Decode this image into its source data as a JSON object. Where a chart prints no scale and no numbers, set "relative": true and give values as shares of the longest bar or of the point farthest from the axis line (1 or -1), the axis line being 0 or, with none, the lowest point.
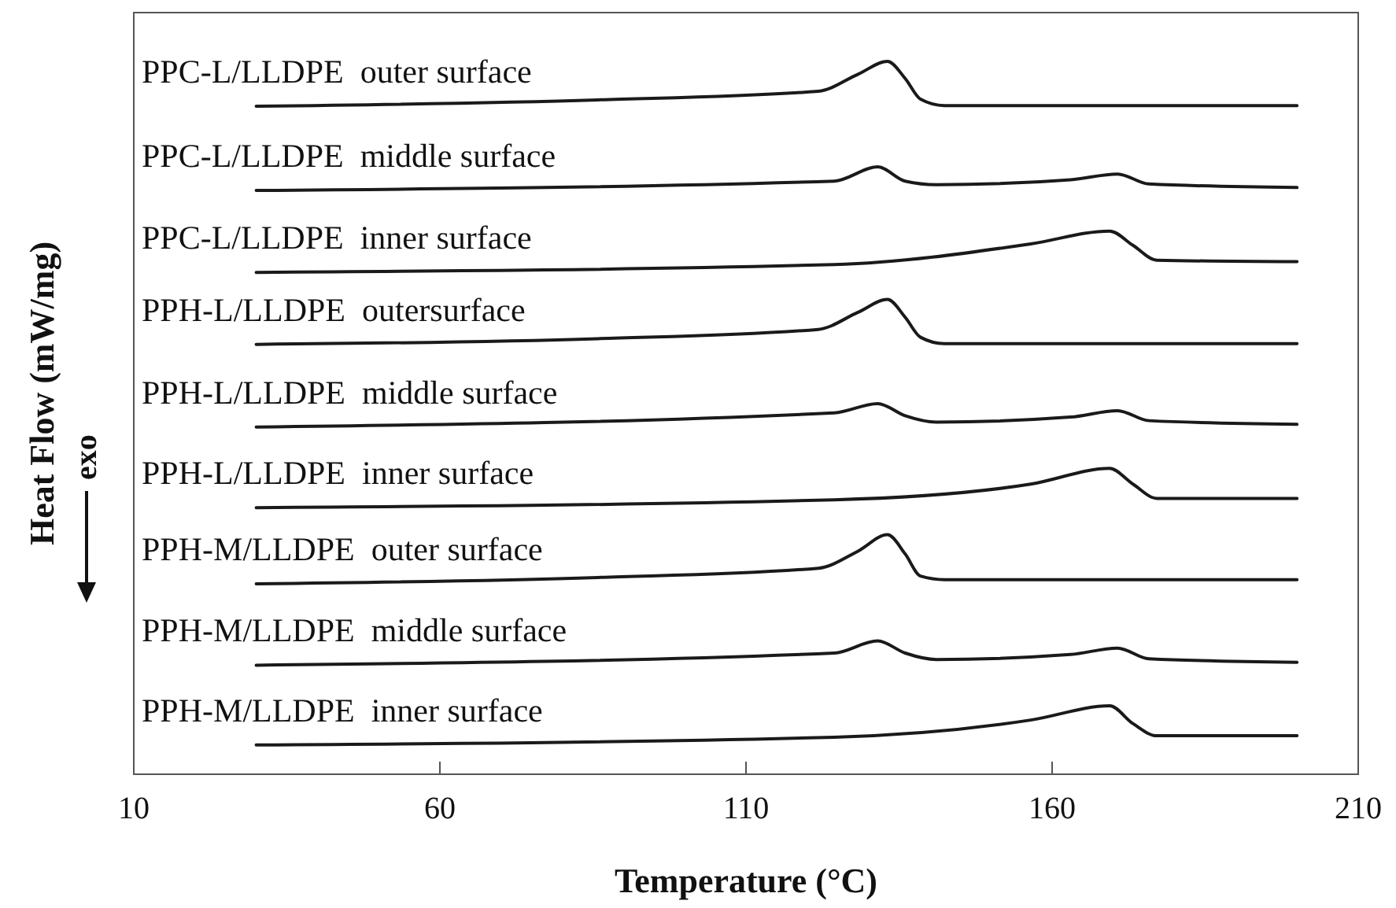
{
  "chart_data": {
    "type": "line",
    "relative": true,
    "xlabel": "Temperature (°C)",
    "ylabel": "Heat Flow (mW/mg)",
    "annotations": [
      "exo"
    ],
    "xlim": [
      10,
      210
    ],
    "xticks": [
      10,
      60,
      110,
      160,
      210
    ],
    "grid": false,
    "marker": "none",
    "line_style": "solid",
    "series": [
      {
        "name": "PPC-L/LLDPE  outer surface",
        "color": "#1a1a1a",
        "x": [
          30,
          85.8,
          121.8,
          128.3,
          133.1,
          136,
          138.5,
          142.4,
          200
        ],
        "values": [
          0.937,
          0.946,
          0.958,
          0.982,
          1,
          0.976,
          0.947,
          0.938,
          0.938
        ]
      },
      {
        "name": "PPC-L/LLDPE  middle surface",
        "color": "#1a1a1a",
        "x": [
          30,
          124.4,
          131.5,
          136,
          141.1,
          163,
          170.7,
          175.8,
          200
        ],
        "values": [
          0.819,
          0.832,
          0.852,
          0.832,
          0.827,
          0.834,
          0.842,
          0.828,
          0.823
        ]
      },
      {
        "name": "PPC-L/LLDPE  inner surface",
        "color": "#1a1a1a",
        "x": [
          30,
          124.4,
          156.5,
          169.4,
          173.2,
          177.1,
          200
        ],
        "values": [
          0.704,
          0.715,
          0.744,
          0.762,
          0.742,
          0.721,
          0.719
        ]
      },
      {
        "name": "PPH-L/LLDPE  outersurface",
        "color": "#1a1a1a",
        "x": [
          30,
          85.8,
          121.8,
          128.3,
          133.1,
          136,
          138.5,
          142.4,
          200
        ],
        "values": [
          0.603,
          0.611,
          0.624,
          0.648,
          0.666,
          0.641,
          0.613,
          0.604,
          0.604
        ]
      },
      {
        "name": "PPH-L/LLDPE  middle surface",
        "color": "#1a1a1a",
        "x": [
          30,
          124.4,
          131.5,
          136,
          141.1,
          163,
          170.7,
          175.8,
          200
        ],
        "values": [
          0.487,
          0.507,
          0.52,
          0.503,
          0.494,
          0.501,
          0.51,
          0.496,
          0.491
        ]
      },
      {
        "name": "PPH-L/LLDPE  inner surface",
        "color": "#1a1a1a",
        "x": [
          30,
          124.4,
          156.5,
          169.4,
          173.2,
          177.1,
          200
        ],
        "values": [
          0.374,
          0.385,
          0.407,
          0.429,
          0.407,
          0.387,
          0.387
        ]
      },
      {
        "name": "PPH-M/LLDPE  outer surface",
        "color": "#1a1a1a",
        "x": [
          30,
          85.8,
          121.8,
          128.3,
          133.1,
          136,
          138.5,
          142.4,
          200
        ],
        "values": [
          0.267,
          0.276,
          0.289,
          0.313,
          0.336,
          0.309,
          0.278,
          0.273,
          0.273
        ]
      },
      {
        "name": "PPH-M/LLDPE  middle surface",
        "color": "#1a1a1a",
        "x": [
          30,
          124.4,
          131.5,
          136,
          141.1,
          163,
          170.7,
          175.8,
          200
        ],
        "values": [
          0.153,
          0.17,
          0.187,
          0.17,
          0.161,
          0.168,
          0.177,
          0.162,
          0.157
        ]
      },
      {
        "name": "PPH-M/LLDPE  inner surface",
        "color": "#1a1a1a",
        "x": [
          30,
          124.4,
          156.5,
          169.4,
          173.2,
          177.1,
          200
        ],
        "values": [
          0.041,
          0.052,
          0.076,
          0.096,
          0.071,
          0.054,
          0.054
        ]
      }
    ]
  }
}
